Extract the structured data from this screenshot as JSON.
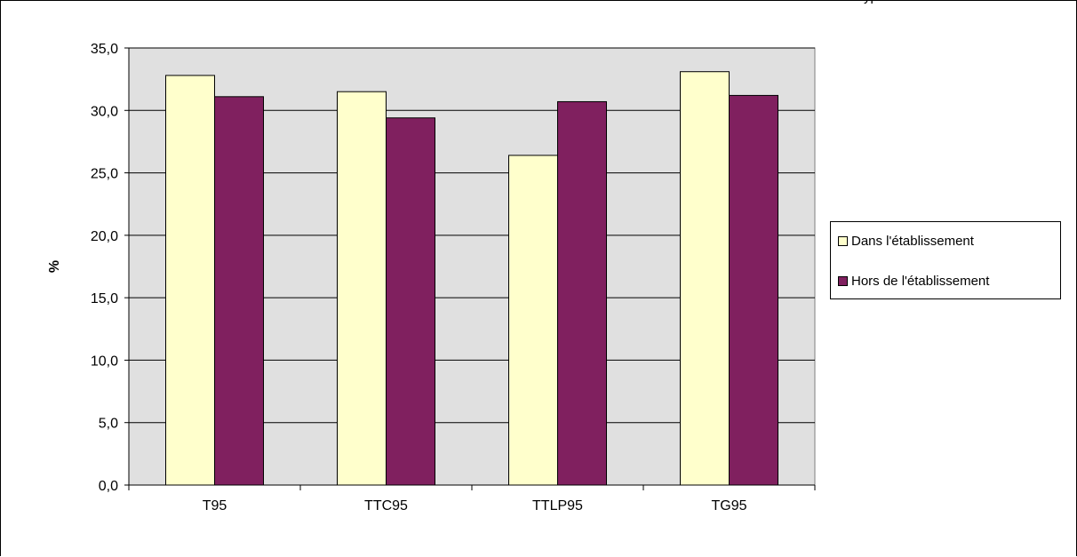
{
  "header": {
    "partial_title": "yp"
  },
  "chart_data": {
    "type": "bar",
    "title": "",
    "xlabel": "",
    "ylabel": "%",
    "ylim": [
      0,
      35
    ],
    "ytick_step": 5,
    "ytick_labels": [
      "0,0",
      "5,0",
      "10,0",
      "15,0",
      "20,0",
      "25,0",
      "30,0",
      "35,0"
    ],
    "categories": [
      "T95",
      "TTC95",
      "TTLP95",
      "TG95"
    ],
    "series": [
      {
        "name": "Dans l'établissement",
        "color": "#FFFFCC",
        "values": [
          32.8,
          31.5,
          26.4,
          33.1
        ]
      },
      {
        "name": "Hors de l'établissement",
        "color": "#80205F",
        "values": [
          31.1,
          29.4,
          30.7,
          31.2
        ]
      }
    ],
    "grid": true,
    "plot_background": "#E0E0E0",
    "legend_position": "right"
  }
}
